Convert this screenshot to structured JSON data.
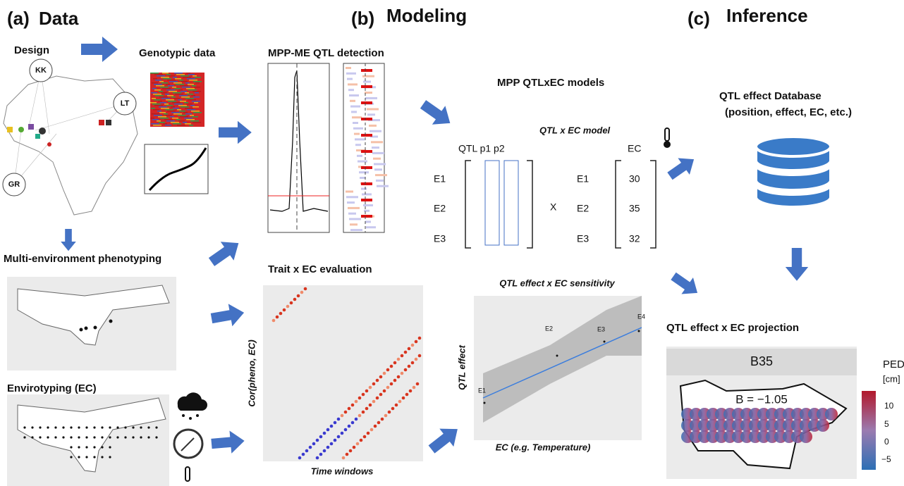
{
  "panels": {
    "a": {
      "letter": "(a)",
      "title": "Data",
      "design": "Design",
      "genotypic": "Genotypic data",
      "sites": [
        "KK",
        "LT",
        "GR"
      ],
      "phenotyping": "Multi-environment phenotyping",
      "envirotyping": "Envirotyping (EC)"
    },
    "b": {
      "letter": "(b)",
      "title": "Modeling",
      "qtl_detection": "MPP-ME QTL detection",
      "trait_ec": "Trait x EC evaluation",
      "trait_ec_y": "Cor(pheno, EC)",
      "trait_ec_x": "Time windows",
      "models_title": "MPP QTLxEC models",
      "model_subtitle": "QTL x EC model",
      "matrix_header": "QTL p1 p2",
      "ec_header": "EC",
      "envs": [
        "E1",
        "E2",
        "E3"
      ],
      "times": "X",
      "ec_values": [
        "30",
        "35",
        "32"
      ],
      "sensitivity_title": "QTL effect x EC sensitivity",
      "sensitivity_y": "QTL effect",
      "sensitivity_x": "EC (e.g. Temperature)",
      "sensitivity_points": [
        "E1",
        "E2",
        "E3",
        "E4"
      ]
    },
    "c": {
      "letter": "(c)",
      "title": "Inference",
      "database": "QTL effect Database",
      "database_sub": "(position, effect, EC, etc.)",
      "projection": "QTL effect x EC projection",
      "facet": "B35",
      "annotation": "B = −1.05",
      "legend_title": "PED",
      "legend_unit": "[cm]",
      "legend_ticks": [
        "10",
        "5",
        "0",
        "−5"
      ]
    }
  }
}
